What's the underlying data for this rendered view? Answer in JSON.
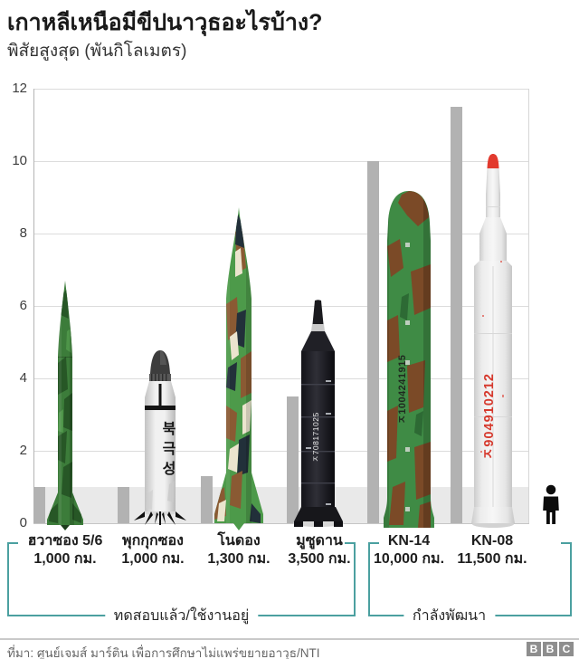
{
  "header": {
    "title": "เกาหลีเหนือมีขีปนาวุธอะไรบ้าง?",
    "subtitle": "พิสัยสูงสุด (พันกิโลเมตร)"
  },
  "chart_data": {
    "type": "bar",
    "title": "เกาหลีเหนือมีขีปนาวุธอะไรบ้าง?",
    "ylabel": "พิสัยสูงสุด (พันกิโลเมตร)",
    "unit": "พันกิโลเมตร",
    "ylim": [
      0,
      12
    ],
    "yticks": [
      0,
      2,
      4,
      6,
      8,
      10,
      12
    ],
    "grid": "horizontal",
    "highlight_band": {
      "from": 0,
      "to": 1
    },
    "categories": [
      "ฮวาซอง 5/6",
      "พุกกุกซอง",
      "โนดอง",
      "มูซูดาน",
      "KN-14",
      "KN-08"
    ],
    "values": [
      1,
      1,
      1.3,
      3.5,
      10,
      11.5
    ],
    "value_labels": [
      "1,000 กม.",
      "1,000 กม.",
      "1,300 กม.",
      "3,500 กม.",
      "10,000 กม.",
      "11,500 กม."
    ],
    "groups": [
      {
        "label": "ทดสอบแล้ว/ใช้งานอยู่",
        "members": [
          "ฮวาซอง 5/6",
          "พุกกุกซอง",
          "โนดอง",
          "มูซูดาน"
        ]
      },
      {
        "label": "กำลังพัฒนา",
        "members": [
          "KN-14",
          "KN-08"
        ]
      }
    ]
  },
  "missiles": [
    {
      "name": "ฮวาซอง 5/6",
      "range_label": "1,000 กม."
    },
    {
      "name": "พุกกุกซอง",
      "range_label": "1,000 กม.",
      "marking": "북극성"
    },
    {
      "name": "โนดอง",
      "range_label": "1,300 กม."
    },
    {
      "name": "มูซูดาน",
      "range_label": "3,500 กม.",
      "marking": "ㅈ708171025"
    },
    {
      "name": "KN-14",
      "range_label": "10,000 กม.",
      "marking": "ㅈ1004241915"
    },
    {
      "name": "KN-08",
      "range_label": "11,500 กม.",
      "marking": "ㅈ904910212"
    }
  ],
  "footer": {
    "source": "ที่มา: ศูนย์เจมส์ มาร์ติน เพื่อการศึกษาไม่แพร่ขยายอาวุธ/NTI",
    "logo_letters": [
      "B",
      "B",
      "C"
    ]
  },
  "colors": {
    "bar": "#b2b2b2",
    "band": "#e9e9e9",
    "bracket": "#4ba0a0",
    "accent_red": "#e23a2e",
    "camo_green": "#3c7c3a",
    "black_missile": "#1b1b1f",
    "white_missile": "#ececec"
  }
}
